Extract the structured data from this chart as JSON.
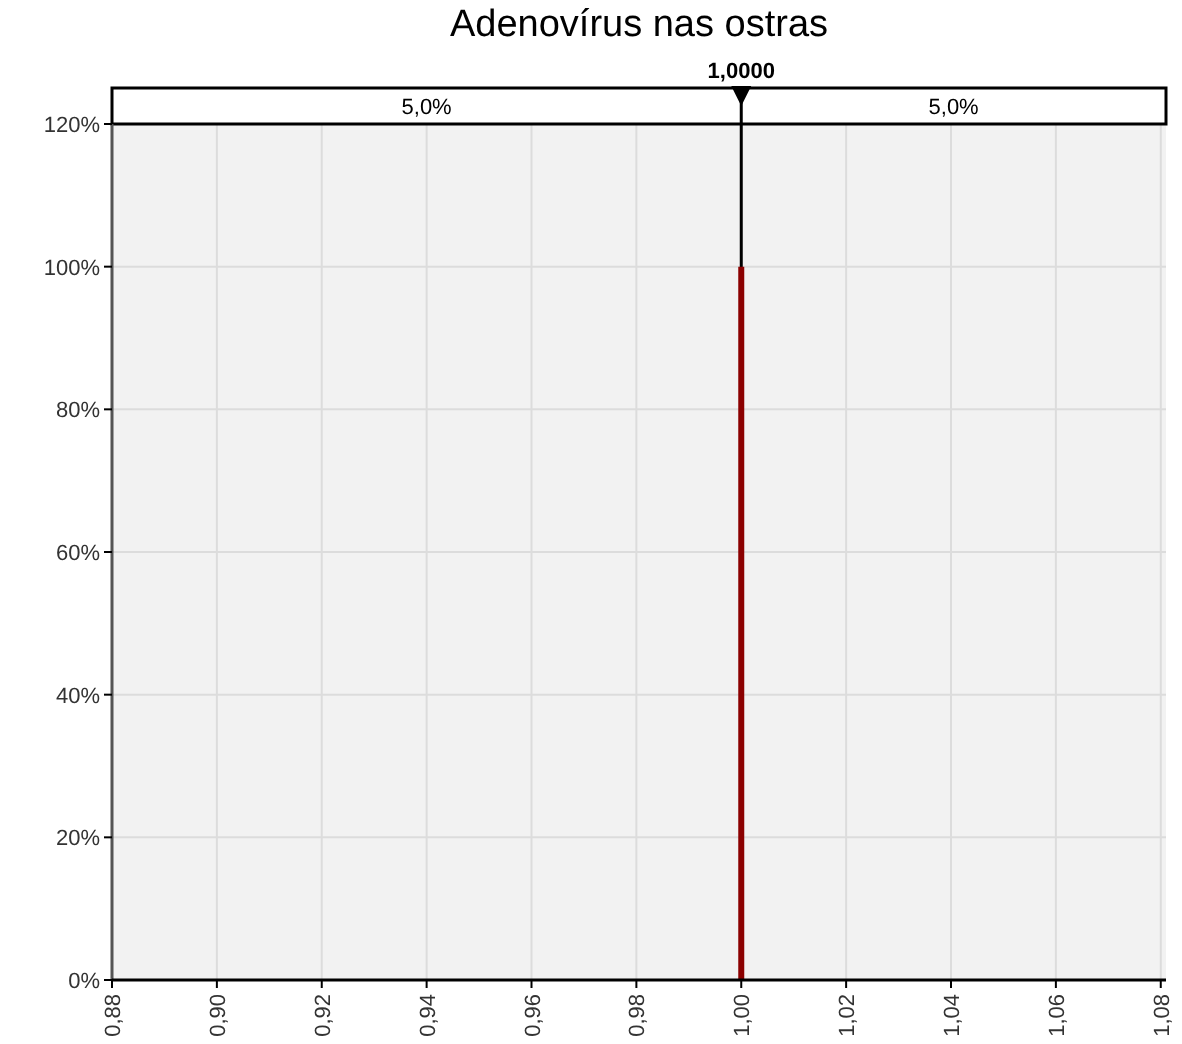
{
  "chart_data": {
    "type": "line",
    "title": "Adenovírus nas ostras",
    "series": [
      {
        "color": "#8b0000",
        "x": [
          1.0,
          1.0
        ],
        "values": [
          0,
          100
        ]
      }
    ],
    "xlim": [
      0.88,
      1.081
    ],
    "xticks": [
      {
        "value": 0.88,
        "label": "0,88"
      },
      {
        "value": 0.9,
        "label": "0,90"
      },
      {
        "value": 0.92,
        "label": "0,92"
      },
      {
        "value": 0.94,
        "label": "0,94"
      },
      {
        "value": 0.96,
        "label": "0,96"
      },
      {
        "value": 0.98,
        "label": "0,98"
      },
      {
        "value": 1.0,
        "label": "1,00"
      },
      {
        "value": 1.02,
        "label": "1,02"
      },
      {
        "value": 1.04,
        "label": "1,04"
      },
      {
        "value": 1.06,
        "label": "1,06"
      },
      {
        "value": 1.08,
        "label": "1,08"
      }
    ],
    "ylim": [
      0,
      120
    ],
    "yticks": [
      {
        "value": 0,
        "label": "0%"
      },
      {
        "value": 20,
        "label": "20%"
      },
      {
        "value": 40,
        "label": "40%"
      },
      {
        "value": 60,
        "label": "60%"
      },
      {
        "value": 80,
        "label": "80%"
      },
      {
        "value": 100,
        "label": "100%"
      },
      {
        "value": 120,
        "label": "120%"
      }
    ],
    "grid": true,
    "ref_lines": [
      {
        "axis": "x",
        "value": 1.0,
        "label": "1,0000",
        "color": "#000000"
      }
    ],
    "annotations": [
      "5,0%",
      "5,0%"
    ]
  }
}
